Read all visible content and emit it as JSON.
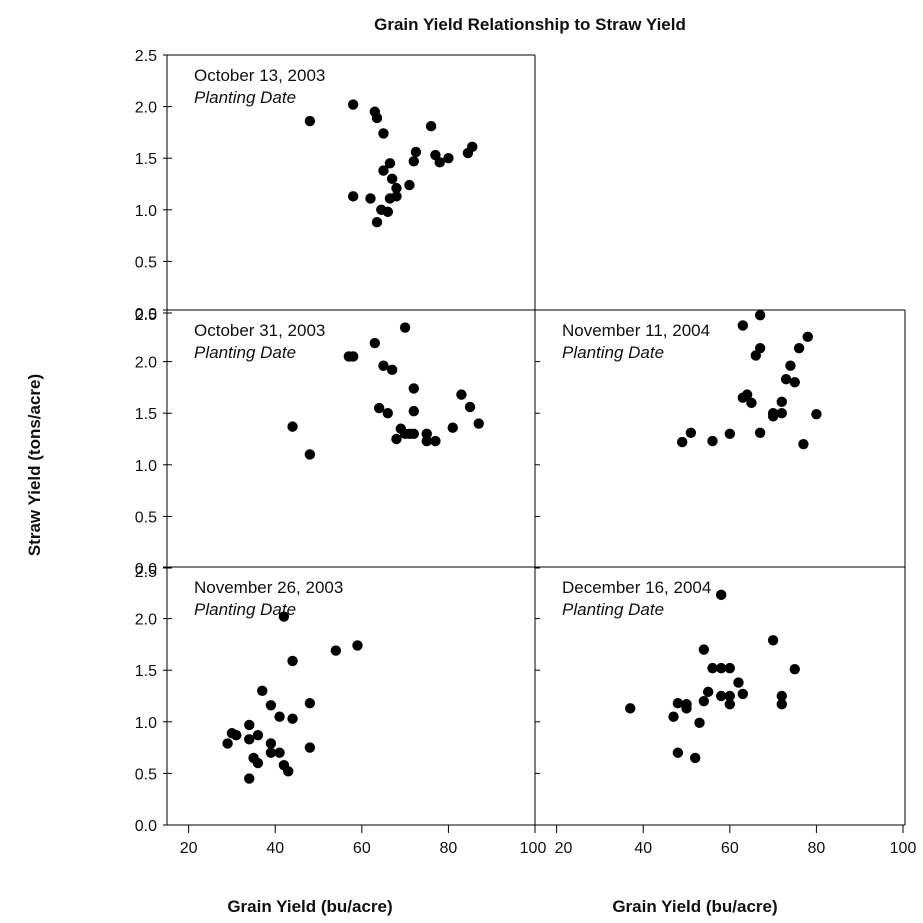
{
  "chart_data": {
    "type": "scatter",
    "title": "Grain Yield Relationship to Straw Yield",
    "xlabel": "Grain Yield (bu/acre)",
    "ylabel": "Straw Yield (tons/acre)",
    "xlim": [
      15,
      100
    ],
    "ylim": [
      0,
      2.5
    ],
    "x_ticks": [
      20,
      40,
      60,
      80,
      100
    ],
    "y_ticks": [
      "0.0",
      "0.5",
      "1.0",
      "1.5",
      "2.0",
      "2.5"
    ],
    "panels": [
      {
        "label": "October 13, 2003",
        "sublabel": "Planting Date",
        "points": [
          [
            48,
            1.86
          ],
          [
            58,
            2.02
          ],
          [
            58,
            1.13
          ],
          [
            62,
            1.11
          ],
          [
            63,
            1.95
          ],
          [
            63.5,
            1.89
          ],
          [
            63.5,
            0.88
          ],
          [
            64.5,
            1.0
          ],
          [
            65,
            1.74
          ],
          [
            65,
            1.38
          ],
          [
            66,
            0.98
          ],
          [
            66.5,
            1.11
          ],
          [
            66.5,
            1.45
          ],
          [
            67,
            1.3
          ],
          [
            68,
            1.13
          ],
          [
            68,
            1.21
          ],
          [
            71,
            1.24
          ],
          [
            72,
            1.47
          ],
          [
            72.5,
            1.56
          ],
          [
            76,
            1.81
          ],
          [
            77,
            1.53
          ],
          [
            78,
            1.46
          ],
          [
            80,
            1.5
          ],
          [
            84.5,
            1.55
          ],
          [
            85.5,
            1.61
          ]
        ]
      },
      {
        "label": "October 31, 2003",
        "sublabel": "Planting Date",
        "points": [
          [
            44,
            1.37
          ],
          [
            48,
            1.1
          ],
          [
            57,
            2.05
          ],
          [
            58,
            2.05
          ],
          [
            63,
            2.18
          ],
          [
            64,
            1.55
          ],
          [
            65,
            1.96
          ],
          [
            66,
            1.5
          ],
          [
            67,
            1.92
          ],
          [
            68,
            1.25
          ],
          [
            69,
            1.35
          ],
          [
            70,
            1.3
          ],
          [
            70,
            2.33
          ],
          [
            71,
            1.3
          ],
          [
            72,
            1.52
          ],
          [
            72,
            1.74
          ],
          [
            72,
            1.3
          ],
          [
            75,
            1.23
          ],
          [
            75,
            1.3
          ],
          [
            77,
            1.23
          ],
          [
            81,
            1.36
          ],
          [
            83,
            1.68
          ],
          [
            85,
            1.56
          ],
          [
            87,
            1.4
          ]
        ]
      },
      {
        "label": "November 26, 2003",
        "sublabel": "Planting Date",
        "points": [
          [
            29,
            0.79
          ],
          [
            30,
            0.89
          ],
          [
            31,
            0.87
          ],
          [
            34,
            0.45
          ],
          [
            34,
            0.83
          ],
          [
            34,
            0.97
          ],
          [
            35,
            0.65
          ],
          [
            36,
            0.6
          ],
          [
            36,
            0.87
          ],
          [
            37,
            1.3
          ],
          [
            39,
            0.7
          ],
          [
            39,
            1.16
          ],
          [
            39,
            0.79
          ],
          [
            41,
            1.05
          ],
          [
            41,
            0.7
          ],
          [
            42,
            0.58
          ],
          [
            42,
            2.02
          ],
          [
            43,
            0.52
          ],
          [
            44,
            1.03
          ],
          [
            44,
            1.59
          ],
          [
            48,
            1.18
          ],
          [
            48,
            0.75
          ],
          [
            54,
            1.69
          ],
          [
            59,
            1.74
          ]
        ]
      },
      {
        "label": "November 11, 2004",
        "sublabel": "Planting Date",
        "points": [
          [
            49,
            1.22
          ],
          [
            51,
            1.31
          ],
          [
            56,
            1.23
          ],
          [
            60,
            1.3
          ],
          [
            63,
            2.35
          ],
          [
            63,
            1.65
          ],
          [
            64,
            1.68
          ],
          [
            65,
            1.6
          ],
          [
            66,
            2.06
          ],
          [
            67,
            2.45
          ],
          [
            67,
            2.13
          ],
          [
            67,
            1.31
          ],
          [
            70,
            1.5
          ],
          [
            70,
            1.47
          ],
          [
            72,
            1.5
          ],
          [
            72,
            1.61
          ],
          [
            73,
            1.83
          ],
          [
            74,
            1.96
          ],
          [
            75,
            1.8
          ],
          [
            76,
            2.13
          ],
          [
            77,
            1.2
          ],
          [
            78,
            2.24
          ],
          [
            80,
            1.49
          ]
        ]
      },
      {
        "label": "December 16, 2004",
        "sublabel": "Planting Date",
        "points": [
          [
            37,
            1.13
          ],
          [
            47,
            1.05
          ],
          [
            48,
            1.18
          ],
          [
            48,
            0.7
          ],
          [
            50,
            1.17
          ],
          [
            50,
            1.13
          ],
          [
            52,
            0.65
          ],
          [
            53,
            0.99
          ],
          [
            54,
            1.7
          ],
          [
            54,
            1.2
          ],
          [
            55,
            1.29
          ],
          [
            56,
            1.52
          ],
          [
            58,
            2.23
          ],
          [
            58,
            1.52
          ],
          [
            58,
            1.25
          ],
          [
            60,
            1.52
          ],
          [
            60,
            1.25
          ],
          [
            60,
            1.17
          ],
          [
            62,
            1.38
          ],
          [
            63,
            1.27
          ],
          [
            70,
            1.79
          ],
          [
            72,
            1.17
          ],
          [
            72,
            1.25
          ],
          [
            75,
            1.51
          ]
        ]
      }
    ],
    "marker_color": "#000000"
  }
}
